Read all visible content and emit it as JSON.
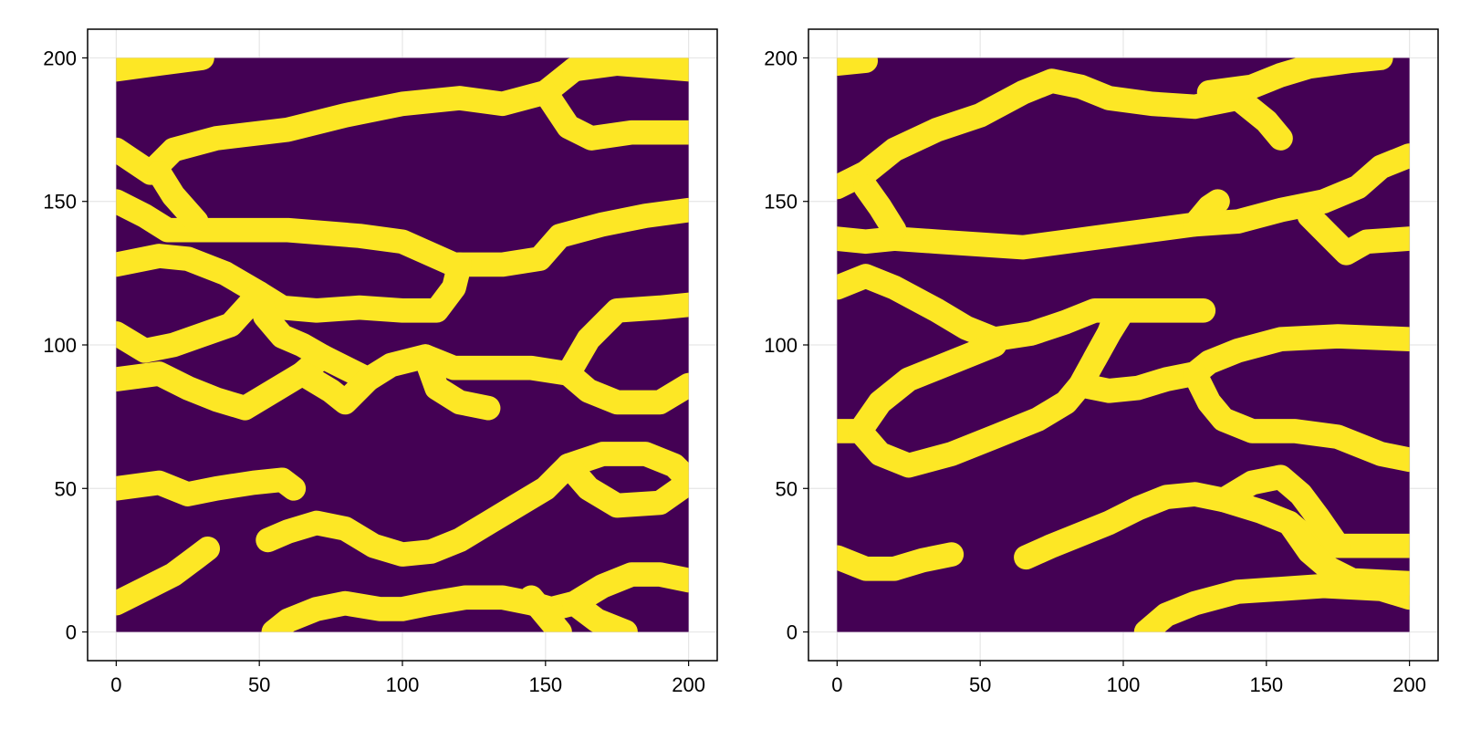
{
  "colors": {
    "background": "#ffffff",
    "channel": "#fde725",
    "matrix": "#440154",
    "gridline": "#e6e6e6",
    "frame": "#000000"
  },
  "chart_data": [
    {
      "type": "heatmap",
      "title": "",
      "xlabel": "",
      "ylabel": "",
      "xlim": [
        -10,
        210
      ],
      "ylim": [
        -10,
        210
      ],
      "xticks": [
        0,
        50,
        100,
        150,
        200
      ],
      "yticks": [
        0,
        50,
        100,
        150,
        200
      ],
      "xtick_labels": [
        "0",
        "50",
        "100",
        "150",
        "200"
      ],
      "ytick_labels": [
        "0",
        "50",
        "100",
        "150",
        "200"
      ],
      "grid": true,
      "colormap": "viridis",
      "value_range": [
        0,
        1
      ],
      "data_extent": {
        "x": [
          0,
          200
        ],
        "y": [
          0,
          200
        ]
      },
      "channels": [
        [
          [
            0,
            196
          ],
          [
            15,
            198
          ],
          [
            30,
            200
          ]
        ],
        [
          [
            0,
            168
          ],
          [
            12,
            160
          ],
          [
            20,
            168
          ],
          [
            35,
            172
          ],
          [
            60,
            175
          ],
          [
            80,
            180
          ],
          [
            100,
            184
          ],
          [
            120,
            186
          ],
          [
            135,
            184
          ],
          [
            150,
            188
          ],
          [
            160,
            196
          ],
          [
            170,
            200
          ]
        ],
        [
          [
            0,
            150
          ],
          [
            10,
            145
          ],
          [
            18,
            140
          ],
          [
            30,
            140
          ],
          [
            60,
            140
          ],
          [
            85,
            138
          ],
          [
            100,
            136
          ],
          [
            118,
            128
          ],
          [
            135,
            128
          ],
          [
            148,
            130
          ],
          [
            155,
            138
          ],
          [
            170,
            142
          ],
          [
            185,
            145
          ],
          [
            200,
            147
          ]
        ],
        [
          [
            15,
            160
          ],
          [
            20,
            152
          ],
          [
            28,
            143
          ]
        ],
        [
          [
            150,
            188
          ],
          [
            158,
            176
          ],
          [
            166,
            172
          ],
          [
            180,
            174
          ],
          [
            200,
            174
          ]
        ],
        [
          [
            160,
            196
          ],
          [
            175,
            198
          ],
          [
            200,
            196
          ]
        ],
        [
          [
            0,
            128
          ],
          [
            15,
            131
          ],
          [
            25,
            130
          ],
          [
            38,
            125
          ],
          [
            50,
            118
          ],
          [
            58,
            113
          ],
          [
            70,
            112
          ],
          [
            85,
            113
          ],
          [
            100,
            112
          ],
          [
            112,
            112
          ],
          [
            118,
            120
          ],
          [
            120,
            128
          ]
        ],
        [
          [
            50,
            118
          ],
          [
            40,
            107
          ],
          [
            20,
            100
          ],
          [
            10,
            98
          ],
          [
            0,
            104
          ]
        ],
        [
          [
            0,
            88
          ],
          [
            15,
            90
          ],
          [
            25,
            85
          ],
          [
            35,
            81
          ],
          [
            45,
            78
          ],
          [
            55,
            84
          ],
          [
            65,
            90
          ],
          [
            72,
            96
          ],
          [
            80,
            92
          ],
          [
            88,
            88
          ],
          [
            96,
            93
          ],
          [
            108,
            96
          ],
          [
            118,
            92
          ],
          [
            130,
            92
          ],
          [
            145,
            92
          ],
          [
            158,
            90
          ],
          [
            165,
            102
          ],
          [
            175,
            112
          ],
          [
            190,
            113
          ],
          [
            200,
            114
          ]
        ],
        [
          [
            50,
            118
          ],
          [
            52,
            110
          ],
          [
            58,
            103
          ],
          [
            65,
            100
          ],
          [
            72,
            96
          ]
        ],
        [
          [
            65,
            90
          ],
          [
            75,
            84
          ],
          [
            80,
            80
          ],
          [
            88,
            88
          ]
        ],
        [
          [
            108,
            96
          ],
          [
            112,
            85
          ],
          [
            120,
            80
          ],
          [
            130,
            78
          ]
        ],
        [
          [
            158,
            90
          ],
          [
            165,
            84
          ],
          [
            175,
            80
          ],
          [
            190,
            80
          ],
          [
            200,
            86
          ]
        ],
        [
          [
            0,
            50
          ],
          [
            15,
            52
          ],
          [
            25,
            48
          ],
          [
            35,
            50
          ],
          [
            48,
            52
          ],
          [
            58,
            53
          ],
          [
            62,
            50
          ]
        ],
        [
          [
            53,
            32
          ],
          [
            60,
            35
          ],
          [
            70,
            38
          ],
          [
            80,
            36
          ],
          [
            90,
            30
          ],
          [
            100,
            27
          ],
          [
            110,
            28
          ],
          [
            120,
            32
          ],
          [
            130,
            38
          ],
          [
            140,
            44
          ],
          [
            150,
            50
          ],
          [
            158,
            58
          ],
          [
            170,
            62
          ],
          [
            185,
            62
          ],
          [
            195,
            58
          ],
          [
            200,
            53
          ]
        ],
        [
          [
            158,
            58
          ],
          [
            165,
            50
          ],
          [
            175,
            44
          ],
          [
            190,
            45
          ],
          [
            200,
            52
          ]
        ],
        [
          [
            0,
            10
          ],
          [
            10,
            15
          ],
          [
            20,
            20
          ],
          [
            28,
            26
          ],
          [
            32,
            29
          ]
        ],
        [
          [
            55,
            0
          ],
          [
            60,
            4
          ],
          [
            70,
            8
          ],
          [
            80,
            10
          ],
          [
            92,
            8
          ],
          [
            100,
            8
          ],
          [
            110,
            10
          ],
          [
            122,
            12
          ],
          [
            135,
            12
          ],
          [
            145,
            10
          ],
          [
            152,
            8
          ],
          [
            160,
            10
          ],
          [
            170,
            16
          ],
          [
            180,
            20
          ],
          [
            190,
            20
          ],
          [
            200,
            18
          ]
        ],
        [
          [
            145,
            12
          ],
          [
            150,
            6
          ],
          [
            155,
            0
          ]
        ],
        [
          [
            160,
            10
          ],
          [
            168,
            4
          ],
          [
            178,
            0
          ]
        ]
      ]
    },
    {
      "type": "heatmap",
      "title": "",
      "xlabel": "",
      "ylabel": "",
      "xlim": [
        -10,
        210
      ],
      "ylim": [
        -10,
        210
      ],
      "xticks": [
        0,
        50,
        100,
        150,
        200
      ],
      "yticks": [
        0,
        50,
        100,
        150,
        200
      ],
      "xtick_labels": [
        "0",
        "50",
        "100",
        "150",
        "200"
      ],
      "ytick_labels": [
        "0",
        "50",
        "100",
        "150",
        "200"
      ],
      "grid": true,
      "colormap": "viridis",
      "value_range": [
        0,
        1
      ],
      "data_extent": {
        "x": [
          0,
          200
        ],
        "y": [
          0,
          200
        ]
      },
      "channels": [
        [
          [
            0,
            198
          ],
          [
            10,
            199
          ]
        ],
        [
          [
            0,
            155
          ],
          [
            10,
            160
          ],
          [
            20,
            168
          ],
          [
            35,
            175
          ],
          [
            50,
            180
          ],
          [
            65,
            188
          ],
          [
            75,
            192
          ],
          [
            85,
            190
          ],
          [
            95,
            186
          ],
          [
            110,
            184
          ],
          [
            125,
            183
          ],
          [
            140,
            186
          ],
          [
            150,
            178
          ],
          [
            155,
            172
          ]
        ],
        [
          [
            130,
            188
          ],
          [
            145,
            190
          ],
          [
            155,
            194
          ],
          [
            165,
            197
          ],
          [
            180,
            199
          ],
          [
            190,
            200
          ]
        ],
        [
          [
            0,
            137
          ],
          [
            10,
            136
          ],
          [
            20,
            137
          ],
          [
            35,
            136
          ],
          [
            50,
            135
          ],
          [
            65,
            134
          ],
          [
            80,
            136
          ],
          [
            95,
            138
          ],
          [
            110,
            140
          ],
          [
            125,
            142
          ],
          [
            140,
            143
          ],
          [
            155,
            147
          ],
          [
            170,
            150
          ],
          [
            182,
            155
          ],
          [
            190,
            162
          ],
          [
            200,
            166
          ]
        ],
        [
          [
            10,
            155
          ],
          [
            15,
            148
          ],
          [
            20,
            140
          ]
        ],
        [
          [
            125,
            142
          ],
          [
            130,
            148
          ],
          [
            133,
            150
          ]
        ],
        [
          [
            165,
            145
          ],
          [
            172,
            138
          ],
          [
            178,
            132
          ],
          [
            185,
            136
          ],
          [
            200,
            137
          ]
        ],
        [
          [
            0,
            120
          ],
          [
            10,
            124
          ],
          [
            20,
            120
          ],
          [
            35,
            112
          ],
          [
            45,
            106
          ],
          [
            55,
            102
          ],
          [
            68,
            104
          ],
          [
            80,
            108
          ],
          [
            90,
            112
          ],
          [
            100,
            112
          ],
          [
            112,
            112
          ],
          [
            128,
            112
          ]
        ],
        [
          [
            100,
            112
          ],
          [
            95,
            104
          ],
          [
            90,
            95
          ],
          [
            85,
            86
          ],
          [
            80,
            80
          ],
          [
            70,
            74
          ],
          [
            55,
            68
          ],
          [
            40,
            62
          ],
          [
            25,
            58
          ],
          [
            15,
            62
          ],
          [
            8,
            70
          ],
          [
            0,
            70
          ]
        ],
        [
          [
            8,
            70
          ],
          [
            15,
            80
          ],
          [
            25,
            88
          ],
          [
            35,
            92
          ],
          [
            45,
            96
          ],
          [
            55,
            100
          ]
        ],
        [
          [
            90,
            95
          ],
          [
            95,
            104
          ],
          [
            98,
            112
          ]
        ],
        [
          [
            85,
            86
          ],
          [
            95,
            84
          ],
          [
            105,
            85
          ],
          [
            115,
            88
          ],
          [
            125,
            90
          ],
          [
            130,
            94
          ],
          [
            140,
            98
          ],
          [
            155,
            102
          ],
          [
            175,
            103
          ],
          [
            200,
            102
          ]
        ],
        [
          [
            125,
            90
          ],
          [
            130,
            80
          ],
          [
            135,
            74
          ],
          [
            145,
            70
          ],
          [
            160,
            70
          ],
          [
            175,
            68
          ],
          [
            190,
            62
          ],
          [
            200,
            60
          ]
        ],
        [
          [
            0,
            26
          ],
          [
            10,
            22
          ],
          [
            20,
            22
          ],
          [
            30,
            25
          ],
          [
            40,
            27
          ]
        ],
        [
          [
            66,
            26
          ],
          [
            75,
            30
          ],
          [
            85,
            34
          ],
          [
            95,
            38
          ],
          [
            105,
            43
          ],
          [
            115,
            47
          ],
          [
            125,
            48
          ],
          [
            135,
            46
          ],
          [
            148,
            42
          ],
          [
            158,
            38
          ],
          [
            165,
            32
          ],
          [
            175,
            30
          ],
          [
            200,
            30
          ]
        ],
        [
          [
            135,
            46
          ],
          [
            145,
            52
          ],
          [
            155,
            54
          ],
          [
            162,
            48
          ],
          [
            168,
            40
          ],
          [
            175,
            30
          ]
        ],
        [
          [
            108,
            0
          ],
          [
            115,
            6
          ],
          [
            125,
            10
          ],
          [
            140,
            14
          ],
          [
            155,
            15
          ],
          [
            170,
            16
          ],
          [
            190,
            15
          ],
          [
            200,
            12
          ]
        ],
        [
          [
            158,
            38
          ],
          [
            165,
            28
          ],
          [
            172,
            22
          ],
          [
            180,
            18
          ],
          [
            200,
            17
          ]
        ]
      ]
    }
  ]
}
